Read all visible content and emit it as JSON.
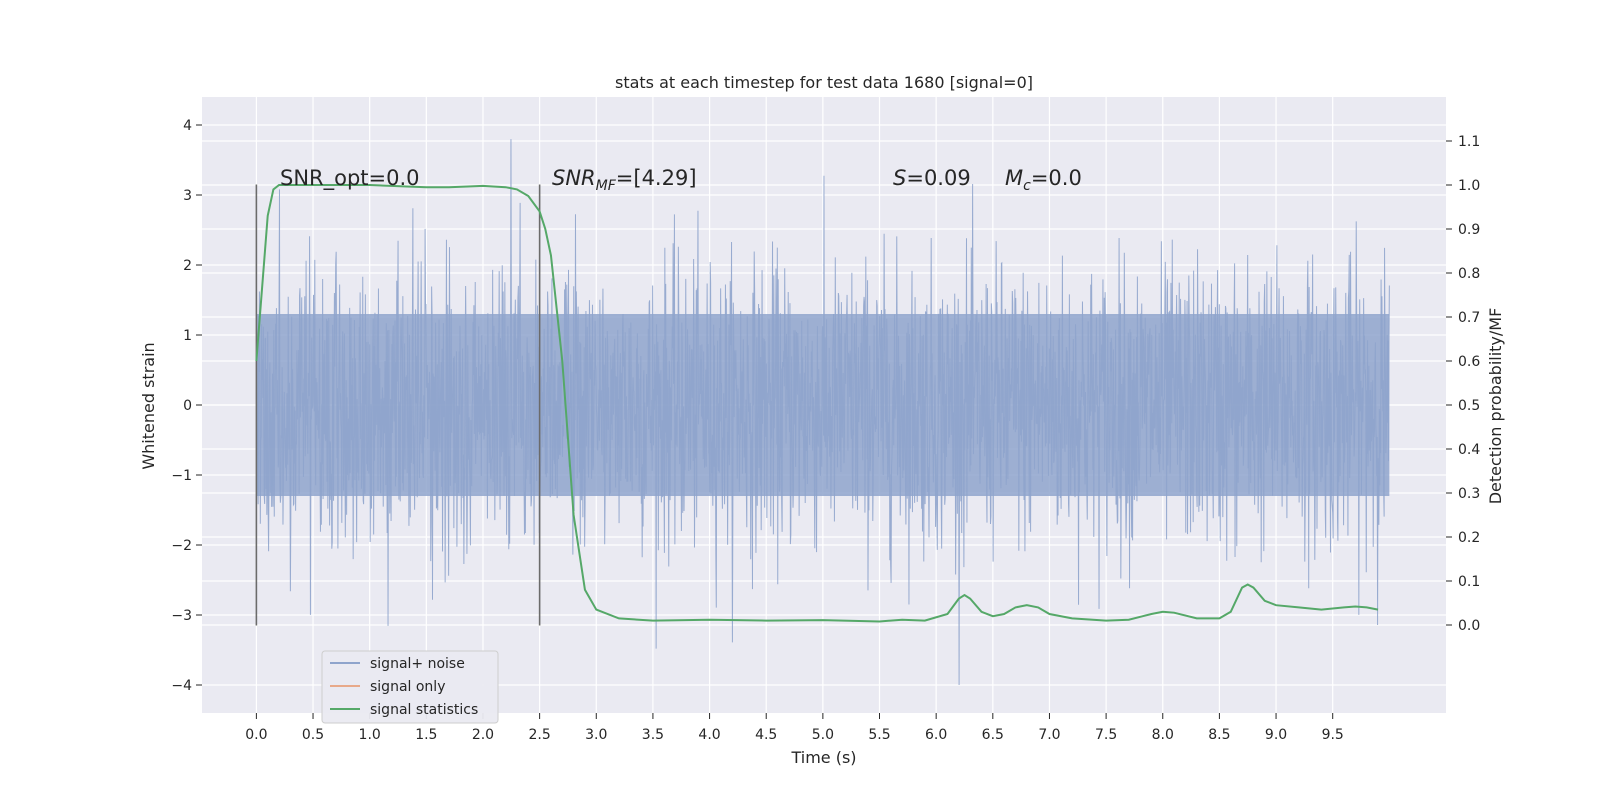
{
  "chart_data": {
    "type": "line",
    "title": "stats at each timestep for test data 1680 [signal=0]",
    "xlabel": "Time (s)",
    "ylabel_left": "Whitened strain",
    "ylabel_right": "Detection probability/MF",
    "xlim": [
      -0.48,
      10.5
    ],
    "ylim_left": [
      -4.4,
      4.4
    ],
    "ylim_right": [
      -0.2,
      1.2
    ],
    "x_ticks": [
      "0.0",
      "0.5",
      "1.0",
      "1.5",
      "2.0",
      "2.5",
      "3.0",
      "3.5",
      "4.0",
      "4.5",
      "5.0",
      "5.5",
      "6.0",
      "6.5",
      "7.0",
      "7.5",
      "8.0",
      "8.5",
      "9.0",
      "9.5"
    ],
    "y_left_ticks": [
      "−4",
      "−3",
      "−2",
      "−1",
      "0",
      "1",
      "2",
      "3",
      "4"
    ],
    "y_right_ticks": [
      "0.0",
      "0.1",
      "0.2",
      "0.3",
      "0.4",
      "0.5",
      "0.6",
      "0.7",
      "0.8",
      "0.9",
      "1.0",
      "1.1"
    ],
    "grid": true,
    "legend_position": "lower-left",
    "series": [
      {
        "name": "signal+ noise",
        "color": "#8fa4cc",
        "axis": "left",
        "x_range": [
          0,
          10
        ],
        "typical_envelope": [
          -1.3,
          1.3
        ],
        "peak_max": 4.05,
        "peak_min": -4.0
      },
      {
        "name": "signal only",
        "color": "#e8a98a",
        "axis": "left",
        "x": [],
        "y": []
      },
      {
        "name": "signal statistics",
        "color": "#55a868",
        "axis": "right",
        "x": [
          0.0,
          0.1,
          0.15,
          0.2,
          0.3,
          0.5,
          1.0,
          1.5,
          1.7,
          2.0,
          2.2,
          2.3,
          2.4,
          2.5,
          2.55,
          2.6,
          2.7,
          2.8,
          2.9,
          3.0,
          3.2,
          3.5,
          4.0,
          4.5,
          5.0,
          5.5,
          5.7,
          5.9,
          6.1,
          6.2,
          6.25,
          6.3,
          6.4,
          6.5,
          6.6,
          6.7,
          6.8,
          6.9,
          7.0,
          7.2,
          7.5,
          7.7,
          7.9,
          8.0,
          8.1,
          8.3,
          8.5,
          8.6,
          8.7,
          8.75,
          8.8,
          8.9,
          9.0,
          9.2,
          9.4,
          9.6,
          9.7,
          9.8,
          9.9
        ],
        "y": [
          0.6,
          0.93,
          0.99,
          1.0,
          1.0,
          1.0,
          1.0,
          0.995,
          0.995,
          0.998,
          0.995,
          0.99,
          0.975,
          0.94,
          0.9,
          0.84,
          0.6,
          0.25,
          0.08,
          0.035,
          0.015,
          0.01,
          0.012,
          0.01,
          0.011,
          0.008,
          0.012,
          0.01,
          0.025,
          0.06,
          0.068,
          0.06,
          0.03,
          0.02,
          0.025,
          0.04,
          0.045,
          0.04,
          0.025,
          0.015,
          0.01,
          0.012,
          0.025,
          0.03,
          0.028,
          0.015,
          0.015,
          0.03,
          0.085,
          0.092,
          0.085,
          0.055,
          0.045,
          0.04,
          0.035,
          0.04,
          0.042,
          0.04,
          0.035
        ]
      }
    ],
    "vlines": [
      {
        "x": 0.0,
        "ymin": -3.15,
        "ymax": 3.15,
        "color": "#6b6b6b"
      },
      {
        "x": 2.5,
        "ymin": -3.15,
        "ymax": 3.15,
        "color": "#6b6b6b"
      }
    ],
    "annotations": {
      "snr_opt": "SNR_opt=0.0",
      "snr_mf": "=[4.29]",
      "snr_mf_prefix": "SNR",
      "snr_mf_sub": "MF",
      "s_stat": "=0.09",
      "s_stat_prefix": "S",
      "mc": "=0.0",
      "mc_prefix": "M",
      "mc_sub": "c"
    }
  }
}
